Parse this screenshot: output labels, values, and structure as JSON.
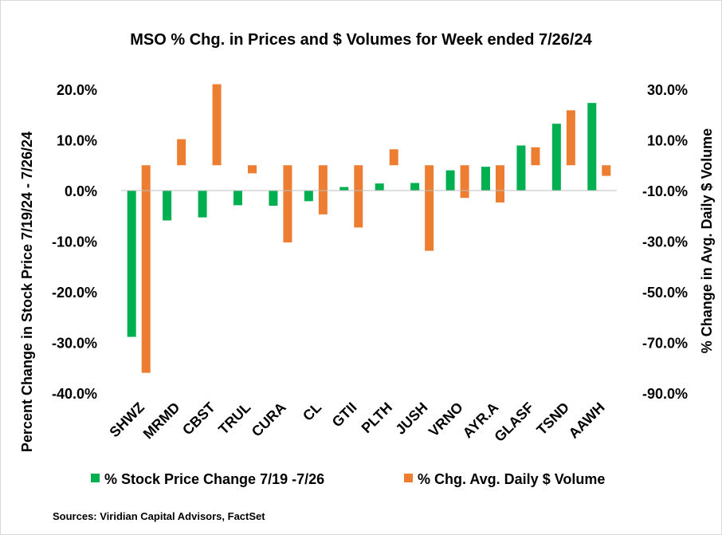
{
  "chart_data": {
    "type": "bar",
    "title": "MSO % Chg. in Prices and $ Volumes for Week ended 7/26/24",
    "ylabel": "Percent Change in Stock Price 7/19/24 - 7/26/24",
    "y2label": "% Change in Avg. Daily $ Volume",
    "source": "Sources: Viridian Capital Advisors, FactSet",
    "ylim": [
      -40,
      20
    ],
    "y2lim": [
      -90,
      30
    ],
    "y_ticks": [
      "-40.0%",
      "-30.0%",
      "-20.0%",
      "-10.0%",
      "0.0%",
      "10.0%",
      "20.0%"
    ],
    "y2_ticks": [
      "-90.0%",
      "-70.0%",
      "-50.0%",
      "-30.0%",
      "-10.0%",
      "10.0%",
      "30.0%"
    ],
    "categories": [
      "SHWZ",
      "MRMD",
      "CBST",
      "TRUL",
      "CURA",
      "CL",
      "GTII",
      "PLTH",
      "JUSH",
      "VRNO",
      "AYR.A",
      "GLASF",
      "TSND",
      "AAWH"
    ],
    "series": [
      {
        "name": "% Stock Price Change 7/19 -7/26",
        "axis": "left",
        "color": "#00b050",
        "values": [
          -28.9,
          -5.9,
          -5.3,
          -2.9,
          -3.0,
          -2.1,
          0.7,
          1.4,
          1.5,
          4.0,
          4.7,
          8.9,
          13.2,
          17.3
        ]
      },
      {
        "name": "% Chg. Avg. Daily $ Volume",
        "axis": "right",
        "color": "#ed7d31",
        "values": [
          -82,
          10.3,
          32,
          -3.2,
          -30.5,
          -19.4,
          -24.6,
          6.3,
          -33.8,
          -12.9,
          -14.7,
          7.1,
          21.7,
          -4.2
        ]
      }
    ]
  }
}
